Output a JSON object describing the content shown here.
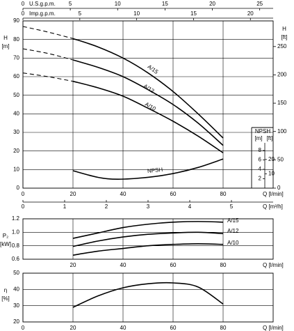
{
  "chart_data": [
    {
      "type": "line",
      "ylabel": "H",
      "yunit": "[m]",
      "y2label": "H",
      "y2unit": "[ft]",
      "xlabel": "Q [l/min]",
      "x": [
        0,
        10,
        20,
        30,
        40,
        50,
        60,
        70,
        80
      ],
      "xlim": [
        0,
        100
      ],
      "xticks": [
        0,
        20,
        40,
        60,
        80
      ],
      "ylim": [
        0,
        90
      ],
      "yticks": [
        0,
        10,
        20,
        30,
        40,
        50,
        60,
        70,
        80,
        90
      ],
      "y2lim": [
        0,
        295.28
      ],
      "y2ticks": [
        0,
        50,
        100,
        150,
        200,
        250
      ],
      "grid": true,
      "color": "#000000",
      "series": [
        {
          "name": "A/15",
          "values": [
            null,
            null,
            80.5,
            76,
            70,
            62,
            52,
            40,
            27
          ],
          "dashed_values": [
            87,
            84,
            80.5,
            null,
            null,
            null,
            null,
            null,
            null
          ]
        },
        {
          "name": "A/12",
          "values": [
            null,
            null,
            69,
            65,
            60,
            53,
            45,
            35,
            23
          ],
          "dashed_values": [
            75,
            72.5,
            69,
            null,
            null,
            null,
            null,
            null,
            null
          ]
        },
        {
          "name": "A/10",
          "values": [
            null,
            null,
            57.5,
            54,
            49.5,
            43,
            36,
            28,
            19
          ],
          "dashed_values": [
            62,
            60,
            57.5,
            null,
            null,
            null,
            null,
            null,
            null
          ]
        }
      ],
      "top_axes": [
        {
          "label": "U.S.g.p.m.",
          "xlim": [
            0,
            26.42
          ],
          "xticks": [
            0,
            5,
            10,
            15,
            20,
            25
          ]
        },
        {
          "label": "Imp.g.p.m.",
          "xlim": [
            0,
            22
          ],
          "xticks": [
            0,
            5,
            10,
            15,
            20
          ]
        }
      ],
      "bottom_axis": {
        "label": "Q [m³/h]",
        "xlim": [
          0,
          6
        ],
        "xticks": [
          0,
          1,
          2,
          3,
          4,
          5
        ]
      }
    },
    {
      "type": "line",
      "ylabel": "NPSH",
      "yunit": "[m]",
      "y2unit": "[ft]",
      "name": "NPSH",
      "x": [
        20,
        30,
        38,
        50,
        60,
        70,
        80
      ],
      "values": [
        3.7,
        2.3,
        1.9,
        2.3,
        3.1,
        4.4,
        6.2
      ],
      "xlim": [
        0,
        100
      ],
      "ylim": [
        0,
        12
      ],
      "yticks": [
        2,
        4,
        6,
        8
      ],
      "y2lim": [
        0,
        39.37
      ],
      "y2ticks": [
        10,
        20
      ],
      "color": "#000000"
    },
    {
      "type": "line",
      "ylabel": "P₂",
      "yunit": "[kW]",
      "xlabel": "Q [l/min]",
      "x": [
        20,
        30,
        40,
        50,
        60,
        70,
        80
      ],
      "xlim": [
        0,
        100
      ],
      "xticks": [
        20,
        40,
        60,
        80
      ],
      "ylim": [
        0.6,
        1.2
      ],
      "yticks": [
        0.6,
        0.8,
        {
          "value": 1,
          "label": "1.0"
        },
        1.2
      ],
      "grid": true,
      "color": "#000000",
      "series": [
        {
          "name": "A/15",
          "values": [
            0.91,
            0.99,
            1.07,
            1.12,
            1.15,
            1.16,
            1.15
          ]
        },
        {
          "name": "A/12",
          "values": [
            0.79,
            0.87,
            0.93,
            0.97,
            0.99,
            1.0,
            0.98
          ]
        },
        {
          "name": "A/10",
          "values": [
            0.66,
            0.72,
            0.76,
            0.8,
            0.82,
            0.83,
            0.82
          ]
        }
      ]
    },
    {
      "type": "line",
      "ylabel": "η",
      "yunit": "[%]",
      "xlabel": "Q [l/min]",
      "x": [
        20,
        30,
        40,
        50,
        60,
        70,
        80
      ],
      "values": [
        29,
        36,
        41,
        43.5,
        44,
        41.5,
        31
      ],
      "xlim": [
        0,
        100
      ],
      "xticks": [
        0,
        20,
        40,
        60,
        80
      ],
      "ylim": [
        20,
        50
      ],
      "yticks": [
        20,
        30,
        40,
        50
      ],
      "grid": true,
      "color": "#000000"
    }
  ]
}
